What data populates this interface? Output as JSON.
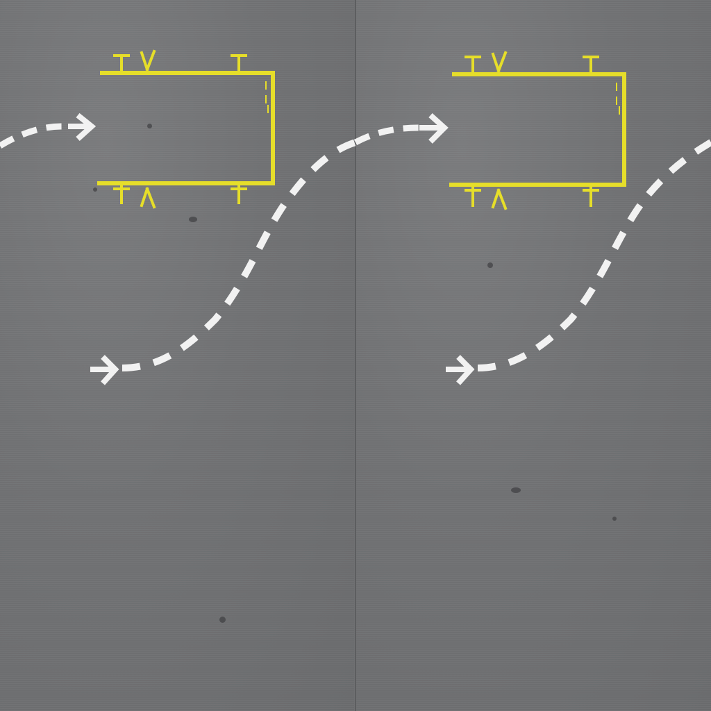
{
  "scene": {
    "panels": [
      {
        "id": "left"
      },
      {
        "id": "right"
      }
    ],
    "colors": {
      "asphalt": "#6f7072",
      "stall_line": "#e6de2a",
      "route_marking": "#f2f2f2"
    },
    "icons": {
      "route_arrow": "chevron-right-icon",
      "stall_tick": "t-mark-icon",
      "stall_fork": "y-mark-icon"
    }
  }
}
